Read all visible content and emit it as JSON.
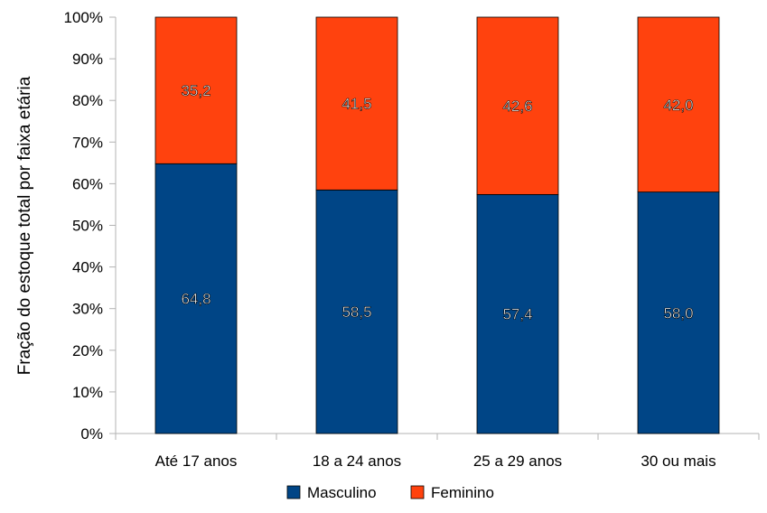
{
  "chart_data": {
    "type": "bar",
    "stacked": true,
    "percent": true,
    "title": "",
    "xlabel": "",
    "ylabel": "Fração do estoque total por faixa etária",
    "ylim": [
      0,
      100
    ],
    "yticks": [
      "0%",
      "10%",
      "20%",
      "30%",
      "40%",
      "50%",
      "60%",
      "70%",
      "80%",
      "90%",
      "100%"
    ],
    "categories": [
      "Até 17 anos",
      "18 a 24 anos",
      "25 a 29 anos",
      "30 ou mais"
    ],
    "series": [
      {
        "name": "Masculino",
        "color": "#004586",
        "values": [
          64.8,
          58.5,
          57.4,
          58.0
        ],
        "labels": [
          "64,8",
          "58,5",
          "57,4",
          "58,0"
        ]
      },
      {
        "name": "Feminino",
        "color": "#ff420e",
        "values": [
          35.2,
          41.5,
          42.6,
          42.0
        ],
        "labels": [
          "35,2",
          "41,5",
          "42,6",
          "42,0"
        ]
      }
    ],
    "grid": false,
    "legend": "bottom"
  }
}
